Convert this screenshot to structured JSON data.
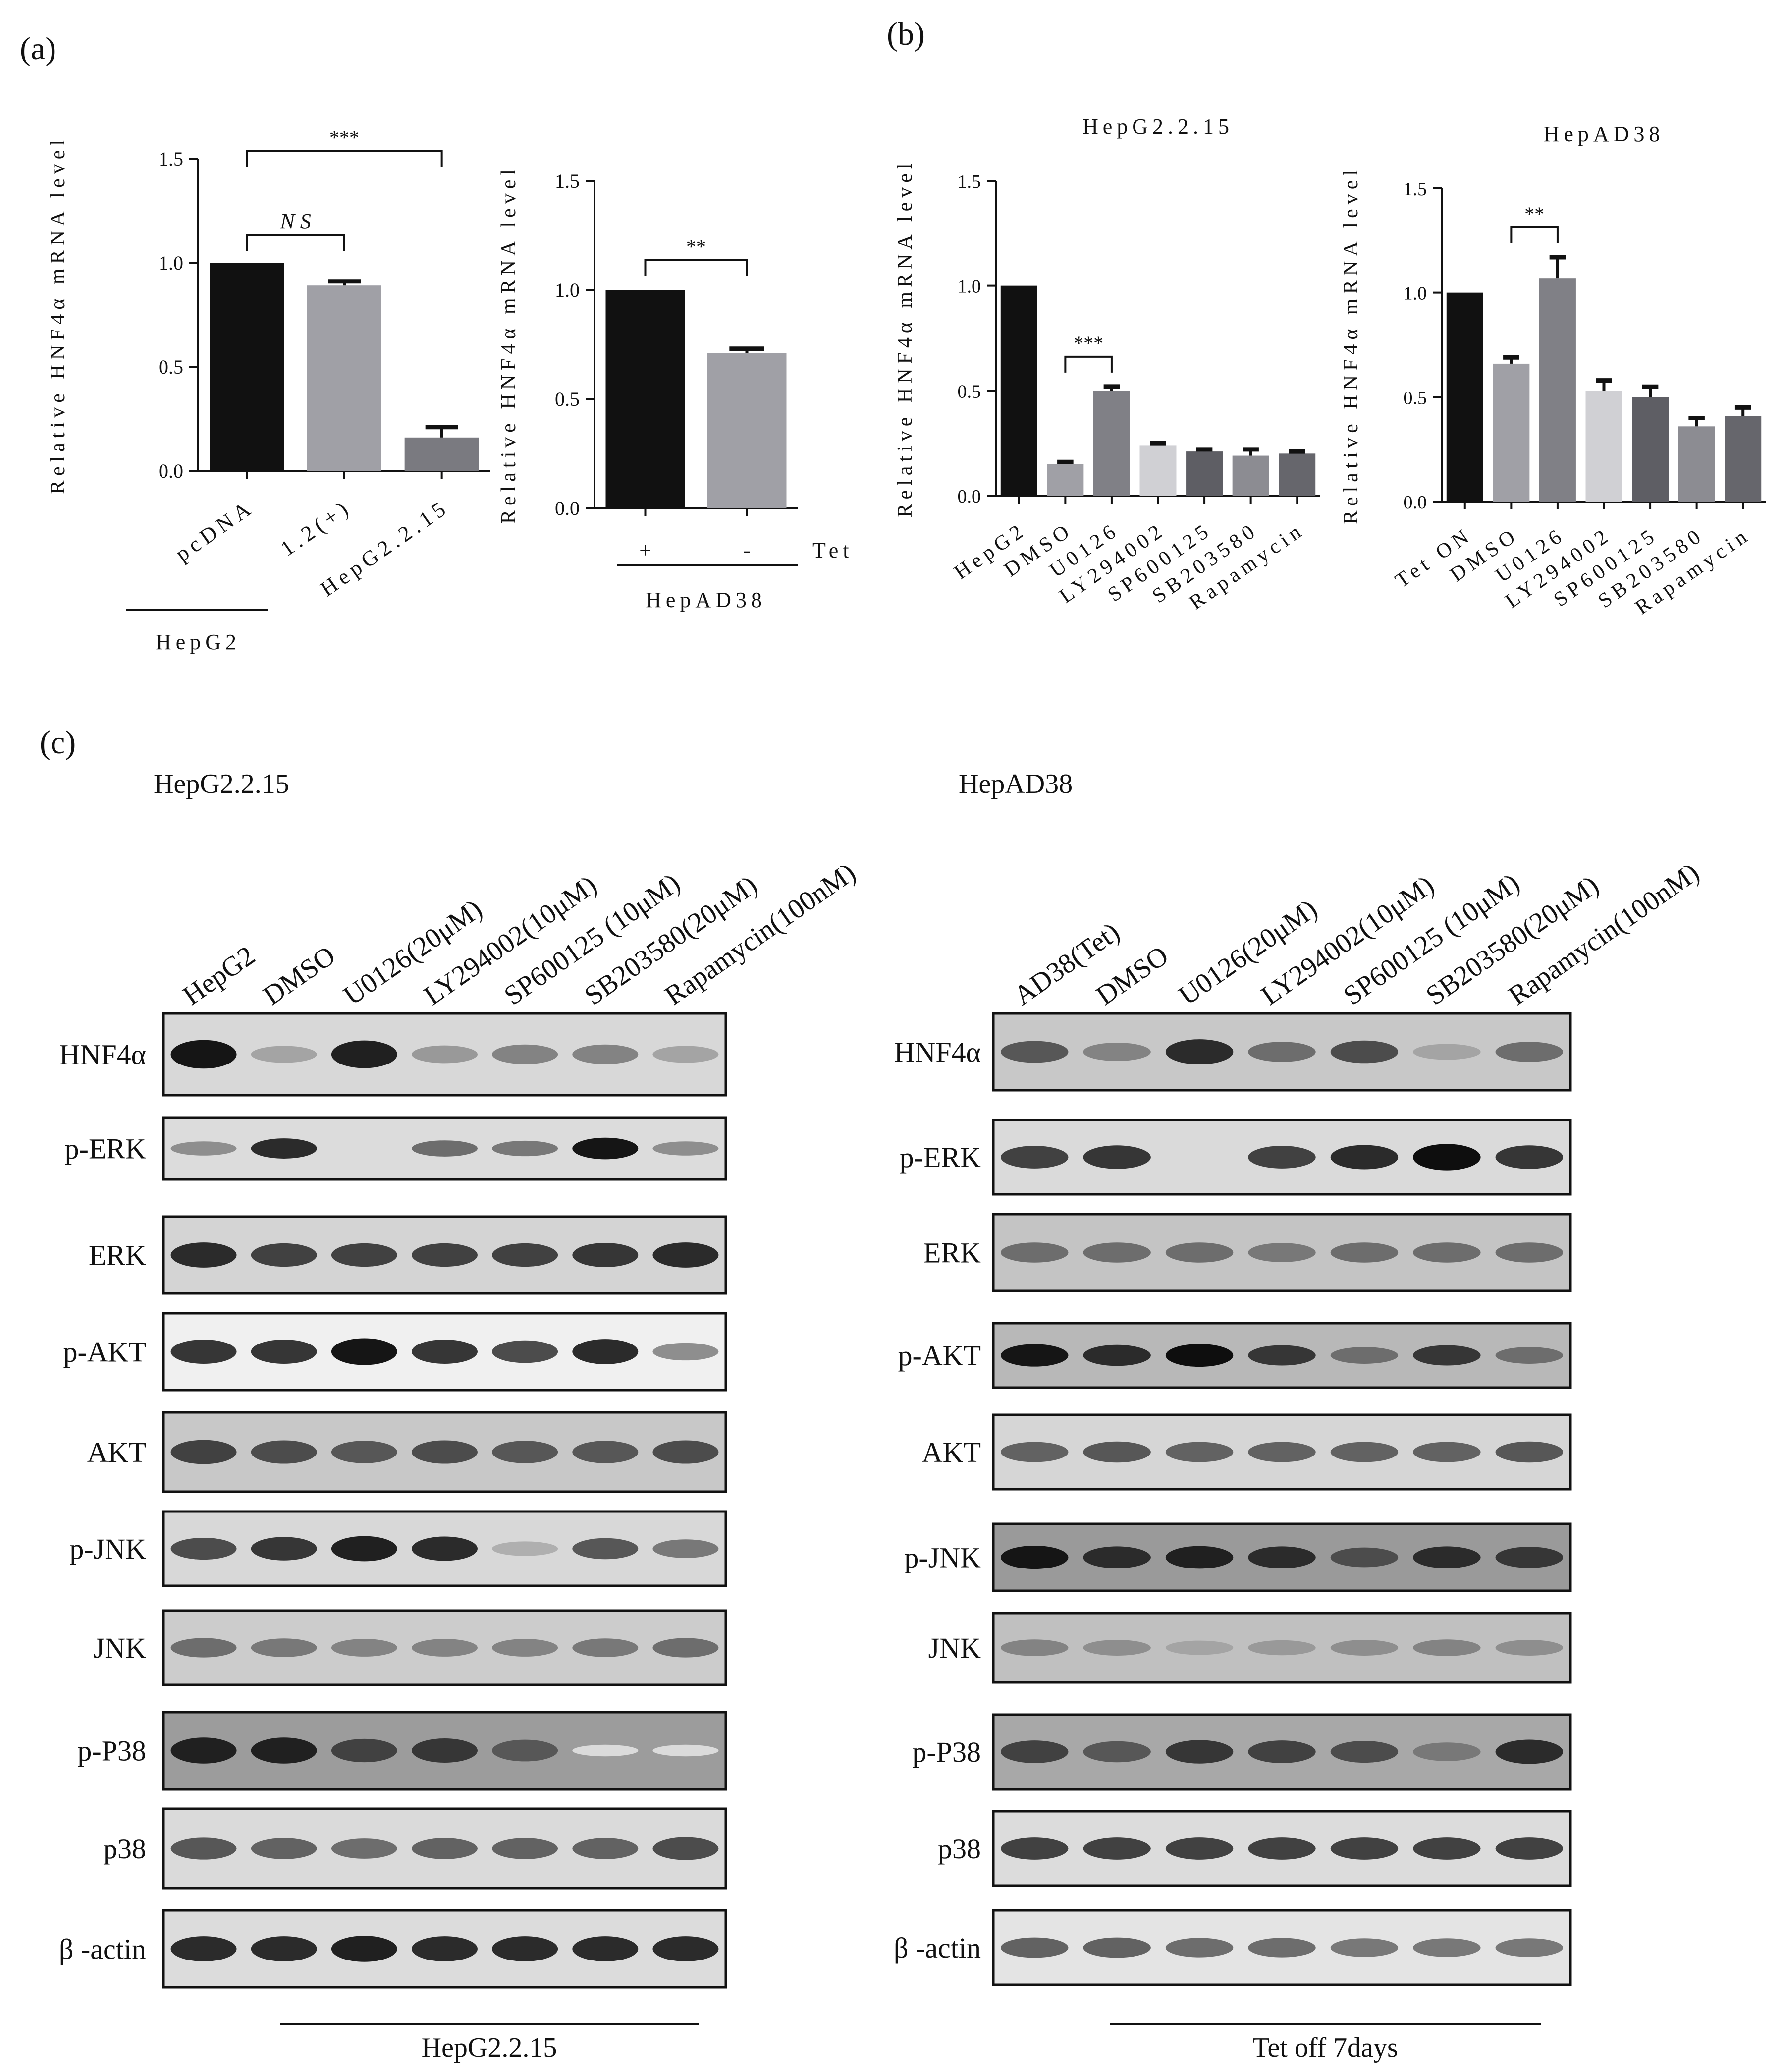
{
  "panels": {
    "a": "(a)",
    "b": "(b)",
    "c": "(c)"
  },
  "y_axis_label": "Relative HNF4α mRNA level",
  "chart_data": [
    {
      "id": "a1",
      "type": "bar",
      "title": "",
      "ylabel": "Relative HNF4α mRNA level",
      "ylim": [
        0,
        1.5
      ],
      "yticks": [
        "0.0",
        "0.5",
        "1.0",
        "1.5"
      ],
      "categories": [
        "pcDNA",
        "1.2(+)",
        "HepG2.2.15"
      ],
      "values": [
        1.0,
        0.89,
        0.16
      ],
      "errors": [
        0,
        0.02,
        0.05
      ],
      "colors": [
        "#111111",
        "#a0a0a6",
        "#7a7a80"
      ],
      "group_label": "HepG2",
      "significance": [
        {
          "from": 0,
          "to": 1,
          "label": "N S"
        },
        {
          "from": 0,
          "to": 2,
          "label": "***"
        }
      ]
    },
    {
      "id": "a2",
      "type": "bar",
      "title": "",
      "ylabel": "Relative HNF4α mRNA level",
      "ylim": [
        0,
        1.5
      ],
      "yticks": [
        "0.0",
        "0.5",
        "1.0",
        "1.5"
      ],
      "categories": [
        "+",
        "-"
      ],
      "values": [
        1.0,
        0.71
      ],
      "errors": [
        0,
        0.02
      ],
      "colors": [
        "#111111",
        "#a0a0a6"
      ],
      "extra_label": "Tet",
      "group_label": "HepAD38",
      "significance": [
        {
          "from": 0,
          "to": 1,
          "label": "**"
        }
      ]
    },
    {
      "id": "b1",
      "type": "bar",
      "title": "HepG2.2.15",
      "ylabel": "Relative HNF4α mRNA level",
      "ylim": [
        0,
        1.5
      ],
      "yticks": [
        "0.0",
        "0.5",
        "1.0",
        "1.5"
      ],
      "categories": [
        "HepG2",
        "DMSO",
        "U0126",
        "LY294002",
        "SP600125",
        "SB203580",
        "Rapamycin"
      ],
      "values": [
        1.0,
        0.15,
        0.5,
        0.24,
        0.21,
        0.19,
        0.2
      ],
      "errors": [
        0,
        0.01,
        0.02,
        0.01,
        0.01,
        0.03,
        0.01
      ],
      "colors": [
        "#111111",
        "#a0a0a6",
        "#808086",
        "#d0d0d4",
        "#5e5e64",
        "#8c8c92",
        "#66666c"
      ],
      "significance": [
        {
          "from": 1,
          "to": 2,
          "label": "***"
        }
      ]
    },
    {
      "id": "b2",
      "type": "bar",
      "title": "HepAD38",
      "ylabel": "Relative HNF4α mRNA level",
      "ylim": [
        0,
        1.5
      ],
      "yticks": [
        "0.0",
        "0.5",
        "1.0",
        "1.5"
      ],
      "categories": [
        "Tet ON",
        "DMSO",
        "U0126",
        "LY294002",
        "SP600125",
        "SB203580",
        "Rapamycin"
      ],
      "values": [
        1.0,
        0.66,
        1.07,
        0.53,
        0.5,
        0.36,
        0.41
      ],
      "errors": [
        0,
        0.03,
        0.1,
        0.05,
        0.05,
        0.04,
        0.04
      ],
      "colors": [
        "#111111",
        "#a0a0a6",
        "#808086",
        "#d0d0d4",
        "#5e5e64",
        "#8c8c92",
        "#66666c"
      ],
      "significance": [
        {
          "from": 1,
          "to": 2,
          "label": "**"
        }
      ]
    }
  ],
  "blots": {
    "left": {
      "title": "HepG2.2.15",
      "lanes": [
        "HepG2",
        "DMSO",
        "U0126(20μM)",
        "LY294002(10μM)",
        "SP600125 (10μM)",
        "SB203580(20μM)",
        "Rapamycin(100nM)"
      ],
      "bottom_label": "HepG2.2.15",
      "rows": [
        {
          "label": "HNF4α",
          "intensity": [
            0.95,
            0.3,
            0.9,
            0.35,
            0.45,
            0.45,
            0.3
          ],
          "background": "#d8d8d8"
        },
        {
          "label": "p-ERK",
          "intensity": [
            0.4,
            0.85,
            0.02,
            0.55,
            0.5,
            0.95,
            0.4
          ],
          "background": "#dcdcdc"
        },
        {
          "label": "ERK",
          "intensity": [
            0.85,
            0.75,
            0.75,
            0.75,
            0.75,
            0.8,
            0.85
          ],
          "background": "#d4d4d4"
        },
        {
          "label": "p-AKT",
          "intensity": [
            0.8,
            0.8,
            0.95,
            0.8,
            0.7,
            0.85,
            0.4
          ],
          "background": "#f0f0f0"
        },
        {
          "label": "AKT",
          "intensity": [
            0.75,
            0.7,
            0.65,
            0.7,
            0.65,
            0.65,
            0.7
          ],
          "background": "#c8c8c8"
        },
        {
          "label": "p-JNK",
          "intensity": [
            0.7,
            0.8,
            0.9,
            0.85,
            0.25,
            0.65,
            0.5
          ],
          "background": "#d8d8d8"
        },
        {
          "label": "JNK",
          "intensity": [
            0.55,
            0.5,
            0.45,
            0.45,
            0.45,
            0.5,
            0.55
          ],
          "background": "#cccccc"
        },
        {
          "label": "p-P38",
          "intensity": [
            0.9,
            0.9,
            0.75,
            0.8,
            0.65,
            0.05,
            0.05
          ],
          "background": "#9c9c9c"
        },
        {
          "label": "p38",
          "intensity": [
            0.65,
            0.6,
            0.55,
            0.6,
            0.6,
            0.6,
            0.7
          ],
          "background": "#dadada"
        },
        {
          "label": "β -actin",
          "intensity": [
            0.85,
            0.85,
            0.9,
            0.85,
            0.85,
            0.85,
            0.85
          ],
          "background": "#dcdcdc"
        }
      ]
    },
    "right": {
      "title": "HepAD38",
      "lanes": [
        "AD38(Tet)",
        "DMSO",
        "U0126(20μM)",
        "LY294002(10μM)",
        "SP600125 (10μM)",
        "SB203580(20μM)",
        "Rapamycin(100nM)"
      ],
      "bottom_label": "Tet off 7days",
      "rows": [
        {
          "label": "HNF4α",
          "intensity": [
            0.65,
            0.45,
            0.85,
            0.55,
            0.7,
            0.3,
            0.55
          ],
          "background": "#c8c8c8"
        },
        {
          "label": "p-ERK",
          "intensity": [
            0.75,
            0.8,
            0.02,
            0.75,
            0.85,
            0.98,
            0.8
          ],
          "background": "#dadada"
        },
        {
          "label": "ERK",
          "intensity": [
            0.55,
            0.55,
            0.55,
            0.5,
            0.55,
            0.55,
            0.55
          ],
          "background": "#c4c4c4"
        },
        {
          "label": "p-AKT",
          "intensity": [
            0.95,
            0.85,
            0.98,
            0.8,
            0.55,
            0.8,
            0.55
          ],
          "background": "#b8b8b8"
        },
        {
          "label": "AKT",
          "intensity": [
            0.6,
            0.65,
            0.6,
            0.6,
            0.6,
            0.6,
            0.65
          ],
          "background": "#d6d6d6"
        },
        {
          "label": "p-JNK",
          "intensity": [
            0.95,
            0.85,
            0.9,
            0.85,
            0.7,
            0.85,
            0.8
          ],
          "background": "#9a9a9a"
        },
        {
          "label": "JNK",
          "intensity": [
            0.45,
            0.4,
            0.3,
            0.35,
            0.4,
            0.45,
            0.4
          ],
          "background": "#c0c0c0"
        },
        {
          "label": "p-P38",
          "intensity": [
            0.75,
            0.65,
            0.8,
            0.75,
            0.7,
            0.5,
            0.85
          ],
          "background": "#a8a8a8"
        },
        {
          "label": "p38",
          "intensity": [
            0.75,
            0.75,
            0.75,
            0.75,
            0.75,
            0.75,
            0.75
          ],
          "background": "#dcdcdc"
        },
        {
          "label": "β -actin",
          "intensity": [
            0.6,
            0.6,
            0.55,
            0.55,
            0.5,
            0.5,
            0.5
          ],
          "background": "#e4e4e4"
        }
      ]
    }
  }
}
